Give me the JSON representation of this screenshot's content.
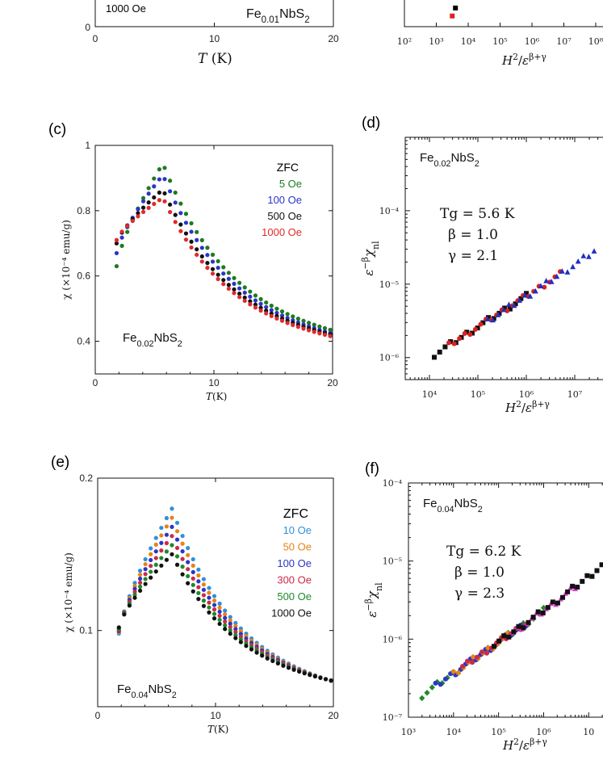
{
  "chart_data": [
    {
      "id": "a",
      "type": "scatter",
      "panel_label": "",
      "xlabel": "T (K)",
      "xlim": [
        0,
        20
      ],
      "xticks": [
        {
          "v": 0,
          "t": "0"
        },
        {
          "v": 10,
          "t": "10"
        },
        {
          "v": 20,
          "t": "20"
        }
      ],
      "annotations": {
        "compound": "Fe0.01NbS2",
        "legend_field": "1000 Oe",
        "ylabel_zero": "0"
      },
      "series": []
    },
    {
      "id": "b",
      "type": "scatter",
      "panel_label": "",
      "xlabel": "H²/ε^(β+γ)",
      "xscale": "log",
      "xticks": [
        {
          "e": 2,
          "t": "10²"
        },
        {
          "e": 3,
          "t": "10³"
        },
        {
          "e": 4,
          "t": "10⁴"
        },
        {
          "e": 5,
          "t": "10⁵"
        },
        {
          "e": 6,
          "t": "10⁶"
        },
        {
          "e": 7,
          "t": "10⁷"
        },
        {
          "e": 8,
          "t": "10⁸"
        },
        {
          "e": 9,
          "t": "10"
        }
      ],
      "series": [
        {
          "values": [
            [
              3.6,
              0.3
            ]
          ],
          "color": "#000000"
        },
        {
          "values": [
            [
              3.5,
              0.6
            ]
          ],
          "color": "#e02020"
        }
      ]
    },
    {
      "id": "c",
      "type": "scatter",
      "panel_label": "(c)",
      "xlabel": "T(K)",
      "ylabel": "χ (×10⁻⁴ emu/g)",
      "xlim": [
        0,
        20
      ],
      "ylim": [
        0.3,
        1.0
      ],
      "xticks": [
        {
          "v": 0,
          "t": "0"
        },
        {
          "v": 10,
          "t": "10"
        },
        {
          "v": 20,
          "t": "20"
        }
      ],
      "yticks": [
        {
          "v": 0.4,
          "t": "0.4"
        },
        {
          "v": 0.6,
          "t": "0.6"
        },
        {
          "v": 0.8,
          "t": "0.8"
        },
        {
          "v": 1.0,
          "t": "1"
        }
      ],
      "compound": "Fe0.02NbS2",
      "legend_title": "ZFC",
      "series": [
        {
          "name": "5 Oe",
          "color": "#1e7a1e",
          "peak": 0.945
        },
        {
          "name": "100 Oe",
          "color": "#2a35c8",
          "peak": 0.91
        },
        {
          "name": "500 Oe",
          "color": "#111111",
          "peak": 0.865
        },
        {
          "name": "1000 Oe",
          "color": "#e02a2a",
          "peak": 0.84
        }
      ],
      "curve": {
        "tmin": 1.8,
        "tmax": 20,
        "tpeak": 5.7,
        "low_start": [
          0.63,
          0.67,
          0.7,
          0.71
        ],
        "end": [
          0.44,
          0.43,
          0.425,
          0.42
        ]
      }
    },
    {
      "id": "d",
      "type": "scatter",
      "panel_label": "(d)",
      "xlabel": "H²/ε^(β+γ)",
      "ylabel": "ε^(−β) χ_nl",
      "xscale": "log",
      "yscale": "log",
      "xlim_exp": [
        3.5,
        7.8
      ],
      "ylim_exp": [
        -6.3,
        -3.0
      ],
      "xticks": [
        {
          "e": 4,
          "t": "10⁴"
        },
        {
          "e": 5,
          "t": "10⁵"
        },
        {
          "e": 6,
          "t": "10⁶"
        },
        {
          "e": 7,
          "t": "10⁷"
        }
      ],
      "yticks": [
        {
          "e": -4,
          "t": "10⁻⁴"
        },
        {
          "e": -5,
          "t": "10⁻⁵"
        },
        {
          "e": -6,
          "t": "10⁻⁶"
        }
      ],
      "compound": "Fe0.02NbS2",
      "params": {
        "tg": "Tg = 5.6 K",
        "beta": "β = 1.0",
        "gamma": "γ = 2.1"
      },
      "series": [
        {
          "color": "#111111",
          "marker": "square",
          "range": [
            4.1,
            6.0
          ]
        },
        {
          "color": "#e02020",
          "marker": "circle",
          "range": [
            4.4,
            6.7
          ]
        },
        {
          "color": "#2030c0",
          "marker": "triangle",
          "range": [
            5.2,
            7.4
          ]
        }
      ],
      "fit": {
        "x0": 4.1,
        "y0": -5.96,
        "slope": 0.42
      }
    },
    {
      "id": "e",
      "type": "scatter",
      "panel_label": "(e)",
      "xlabel": "T(K)",
      "ylabel": "χ (×10⁻⁴ emu/g)",
      "xlim": [
        0,
        20
      ],
      "ylim": [
        0.05,
        0.2
      ],
      "xticks": [
        {
          "v": 0,
          "t": "0"
        },
        {
          "v": 10,
          "t": "10"
        },
        {
          "v": 20,
          "t": "20"
        }
      ],
      "yticks": [
        {
          "v": 0.1,
          "t": "0.1"
        },
        {
          "v": 0.2,
          "t": "0.2"
        }
      ],
      "compound": "Fe0.04NbS2",
      "legend_title": "ZFC",
      "series": [
        {
          "name": "10 Oe",
          "color": "#2f8fdc",
          "peak": 0.18
        },
        {
          "name": "50 Oe",
          "color": "#e8821a",
          "peak": 0.174
        },
        {
          "name": "100 Oe",
          "color": "#2a35c8",
          "peak": 0.168
        },
        {
          "name": "300 Oe",
          "color": "#cc2a4a",
          "peak": 0.162
        },
        {
          "name": "500 Oe",
          "color": "#1e8a2a",
          "peak": 0.156
        },
        {
          "name": "1000 Oe",
          "color": "#111111",
          "peak": 0.15
        }
      ],
      "curve": {
        "tmin": 1.8,
        "tmax": 20,
        "tpeak": 6.3,
        "low_start": 0.098,
        "end": 0.068
      }
    },
    {
      "id": "f",
      "type": "scatter",
      "panel_label": "(f)",
      "xlabel": "H²/ε^(β+γ)",
      "ylabel": "ε^(−β) χ_nl",
      "xscale": "log",
      "yscale": "log",
      "xlim_exp": [
        3,
        7.55
      ],
      "ylim_exp": [
        -7,
        -4
      ],
      "xticks": [
        {
          "e": 3,
          "t": "10³"
        },
        {
          "e": 4,
          "t": "10⁴"
        },
        {
          "e": 5,
          "t": "10⁵"
        },
        {
          "e": 6,
          "t": "10⁶"
        },
        {
          "e": 7,
          "t": "10"
        }
      ],
      "yticks": [
        {
          "e": -4,
          "t": "10⁻⁴"
        },
        {
          "e": -5,
          "t": "10⁻⁵"
        },
        {
          "e": -6,
          "t": "10⁻⁶"
        },
        {
          "e": -7,
          "t": "10⁻⁷"
        }
      ],
      "compound": "Fe0.04NbS2",
      "params": {
        "tg": "Tg = 6.2 K",
        "beta": "β = 1.0",
        "gamma": "γ = 2.3"
      },
      "series": [
        {
          "color": "#1e8a2a",
          "marker": "diamond",
          "range": [
            3.3,
            6.0
          ]
        },
        {
          "color": "#2a35c8",
          "marker": "circle",
          "range": [
            3.6,
            5.6
          ]
        },
        {
          "color": "#e8821a",
          "marker": "circle",
          "range": [
            4.0,
            5.2
          ]
        },
        {
          "color": "#cc2a4a",
          "marker": "circle",
          "range": [
            4.2,
            5.6
          ]
        },
        {
          "color": "#e03ad0",
          "marker": "triangle",
          "range": [
            5.3,
            6.7
          ]
        },
        {
          "color": "#111111",
          "marker": "square",
          "range": [
            4.9,
            7.4
          ]
        }
      ],
      "fit": {
        "x0": 3.3,
        "y0": -6.72,
        "slope": 0.4
      }
    }
  ]
}
